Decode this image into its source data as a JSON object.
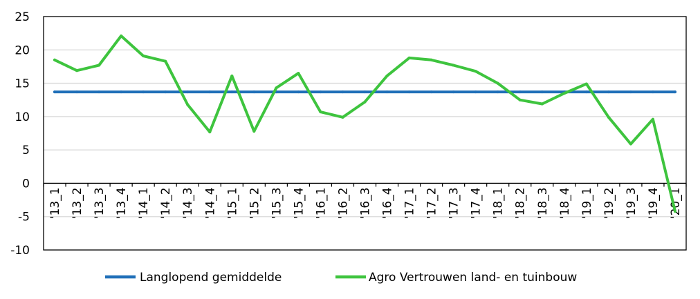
{
  "chart_data": {
    "type": "line",
    "title": "",
    "xlabel": "",
    "ylabel": "",
    "ylim": [
      -10,
      25
    ],
    "yticks": [
      -10,
      -5,
      0,
      5,
      10,
      15,
      20,
      25
    ],
    "grid": true,
    "legend_position": "bottom",
    "categories": [
      "'13_1",
      "'13_2",
      "'13_3",
      "'13_4",
      "'14_1",
      "'14_2",
      "'14_3",
      "'14_4",
      "'15_1",
      "'15_2",
      "'15_3",
      "'15_4",
      "'16_1",
      "'16_2",
      "'16_3",
      "'16_4",
      "'17_1",
      "'17_2",
      "'17_3",
      "'17_4",
      "'18_1",
      "'18_2",
      "'18_3",
      "'18_4",
      "'19_1",
      "'19_2",
      "'19_3",
      "'19_4",
      "'20_1"
    ],
    "series": [
      {
        "name": "Langlopend gemiddelde",
        "color": "#1f6fb8",
        "values": [
          13.7,
          13.7,
          13.7,
          13.7,
          13.7,
          13.7,
          13.7,
          13.7,
          13.7,
          13.7,
          13.7,
          13.7,
          13.7,
          13.7,
          13.7,
          13.7,
          13.7,
          13.7,
          13.7,
          13.7,
          13.7,
          13.7,
          13.7,
          13.7,
          13.7,
          13.7,
          13.7,
          13.7,
          13.7
        ]
      },
      {
        "name": "Agro Vertrouwen land- en tuinbouw",
        "color": "#3ec43e",
        "values": [
          18.5,
          16.9,
          17.7,
          22.1,
          19.1,
          18.3,
          11.8,
          7.7,
          16.1,
          7.8,
          14.3,
          16.5,
          10.7,
          9.9,
          12.2,
          16.1,
          18.8,
          18.5,
          17.7,
          16.8,
          15.0,
          12.5,
          11.9,
          13.5,
          14.9,
          9.9,
          5.9,
          9.6,
          -4.2
        ]
      }
    ]
  }
}
